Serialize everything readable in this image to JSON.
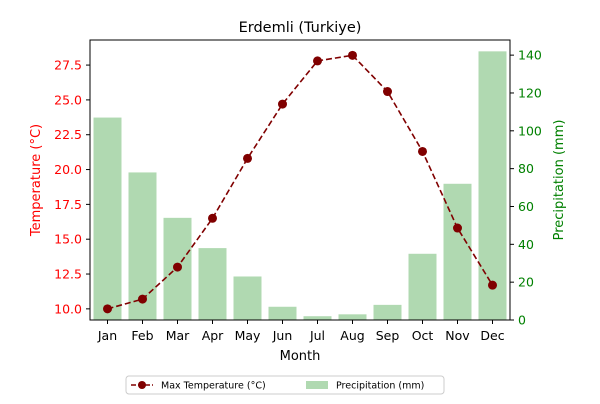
{
  "chart_data": {
    "type": "bar+line",
    "title": "Erdemli (Turkiye)",
    "xlabel": "Month",
    "categories": [
      "Jan",
      "Feb",
      "Mar",
      "Apr",
      "May",
      "Jun",
      "Jul",
      "Aug",
      "Sep",
      "Oct",
      "Nov",
      "Dec"
    ],
    "left_axis": {
      "label": "Temperature (°C)",
      "color": "#ff0000",
      "ylim": [
        9.2,
        29.3
      ],
      "ticks": [
        "10.0",
        "12.5",
        "15.0",
        "17.5",
        "20.0",
        "22.5",
        "25.0",
        "27.5"
      ]
    },
    "right_axis": {
      "label": "Precipitation (mm)",
      "color": "#008000",
      "ylim": [
        0,
        148
      ],
      "ticks": [
        "0",
        "20",
        "40",
        "60",
        "80",
        "100",
        "120",
        "140"
      ]
    },
    "series": [
      {
        "name": "Max Temperature (°C)",
        "kind": "line",
        "axis": "left",
        "color": "#800000",
        "style": "dashed",
        "marker": "circle",
        "values": [
          10.0,
          10.7,
          13.0,
          16.5,
          20.8,
          24.7,
          27.8,
          28.2,
          25.6,
          21.3,
          15.8,
          11.7
        ]
      },
      {
        "name": "Precipitation (mm)",
        "kind": "bar",
        "axis": "right",
        "color": "#b0d9b1",
        "values": [
          107,
          78,
          54,
          38,
          23,
          7,
          2,
          3,
          8,
          35,
          72,
          142
        ]
      }
    ],
    "legend": {
      "placement": "bottom-center",
      "columns": 2
    }
  }
}
